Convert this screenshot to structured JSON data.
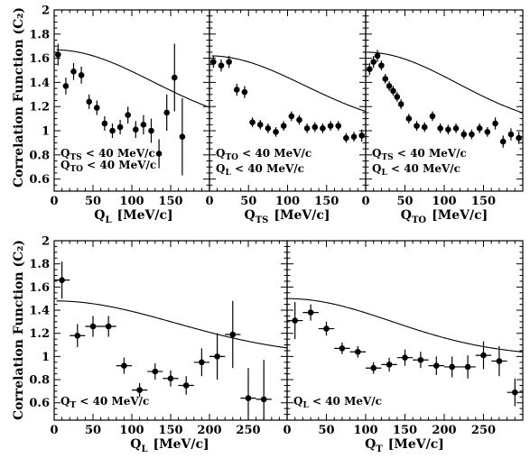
{
  "y_axis_title": "Correlation Function (C₂)",
  "chart_data": [
    {
      "id": "top-ql",
      "type": "scatter",
      "xlabel": "Q_L",
      "xunit": "[MeV/c]",
      "xlim": [
        0,
        200
      ],
      "ylim": [
        0.5,
        2.0
      ],
      "xticks": [
        0,
        50,
        100,
        150
      ],
      "yticks": [
        0.6,
        0.8,
        1,
        1.2,
        1.4,
        1.6,
        1.8,
        2
      ],
      "annotations": [
        {
          "sym": "Q",
          "sub": "TS",
          "text": " < 40 MeV/c"
        },
        {
          "sym": "Q",
          "sub": "TO",
          "text": " < 40 MeV/c"
        }
      ],
      "fit": {
        "lambda": 0.67,
        "R_fm": 1.1,
        "norm": 1.0,
        "x_from": 3,
        "x_to": 200
      },
      "points": [
        {
          "x": 5,
          "y": 1.63,
          "ey": 0.09
        },
        {
          "x": 15,
          "y": 1.37,
          "ey": 0.07
        },
        {
          "x": 25,
          "y": 1.49,
          "ey": 0.07
        },
        {
          "x": 35,
          "y": 1.46,
          "ey": 0.07
        },
        {
          "x": 45,
          "y": 1.24,
          "ey": 0.06
        },
        {
          "x": 55,
          "y": 1.19,
          "ey": 0.06
        },
        {
          "x": 65,
          "y": 1.06,
          "ey": 0.06
        },
        {
          "x": 75,
          "y": 1.0,
          "ey": 0.06
        },
        {
          "x": 85,
          "y": 1.03,
          "ey": 0.06
        },
        {
          "x": 95,
          "y": 1.13,
          "ey": 0.07
        },
        {
          "x": 105,
          "y": 1.01,
          "ey": 0.07
        },
        {
          "x": 115,
          "y": 1.05,
          "ey": 0.08
        },
        {
          "x": 125,
          "y": 1.0,
          "ey": 0.1
        },
        {
          "x": 135,
          "y": 0.81,
          "ey": 0.12
        },
        {
          "x": 145,
          "y": 1.15,
          "ey": 0.15
        },
        {
          "x": 155,
          "y": 1.44,
          "ey": 0.28
        },
        {
          "x": 165,
          "y": 0.95,
          "ey": 0.32
        }
      ]
    },
    {
      "id": "top-qts",
      "type": "scatter",
      "xlabel": "Q_TS",
      "xunit": "[MeV/c]",
      "xlim": [
        0,
        200
      ],
      "ylim": [
        0.5,
        2.0
      ],
      "xticks": [
        0,
        50,
        100,
        150
      ],
      "yticks": [
        0.6,
        0.8,
        1,
        1.2,
        1.4,
        1.6,
        1.8,
        2
      ],
      "annotations": [
        {
          "sym": "Q",
          "sub": "TO",
          "text": " < 40 MeV/c"
        },
        {
          "sym": "Q",
          "sub": "L",
          "text": " < 40 MeV/c"
        }
      ],
      "fit": {
        "lambda": 0.62,
        "R_fm": 1.15,
        "norm": 1.0,
        "x_from": 3,
        "x_to": 200
      },
      "points": [
        {
          "x": 5,
          "y": 1.57,
          "ey": 0.05
        },
        {
          "x": 15,
          "y": 1.54,
          "ey": 0.05
        },
        {
          "x": 25,
          "y": 1.57,
          "ey": 0.05
        },
        {
          "x": 35,
          "y": 1.34,
          "ey": 0.05
        },
        {
          "x": 45,
          "y": 1.32,
          "ey": 0.05
        },
        {
          "x": 55,
          "y": 1.07,
          "ey": 0.04
        },
        {
          "x": 65,
          "y": 1.05,
          "ey": 0.04
        },
        {
          "x": 75,
          "y": 1.02,
          "ey": 0.04
        },
        {
          "x": 85,
          "y": 0.99,
          "ey": 0.04
        },
        {
          "x": 95,
          "y": 1.04,
          "ey": 0.04
        },
        {
          "x": 105,
          "y": 1.12,
          "ey": 0.04
        },
        {
          "x": 115,
          "y": 1.09,
          "ey": 0.04
        },
        {
          "x": 125,
          "y": 1.02,
          "ey": 0.04
        },
        {
          "x": 135,
          "y": 1.03,
          "ey": 0.04
        },
        {
          "x": 145,
          "y": 1.02,
          "ey": 0.04
        },
        {
          "x": 155,
          "y": 1.04,
          "ey": 0.04
        },
        {
          "x": 165,
          "y": 1.04,
          "ey": 0.04
        },
        {
          "x": 175,
          "y": 0.94,
          "ey": 0.04
        },
        {
          "x": 185,
          "y": 0.95,
          "ey": 0.04
        },
        {
          "x": 195,
          "y": 0.96,
          "ey": 0.05
        }
      ]
    },
    {
      "id": "top-qto",
      "type": "scatter",
      "xlabel": "Q_TO",
      "xunit": "[MeV/c]",
      "xlim": [
        0,
        200
      ],
      "ylim": [
        0.5,
        2.0
      ],
      "xticks": [
        0,
        50,
        100,
        150
      ],
      "yticks": [
        0.6,
        0.8,
        1,
        1.2,
        1.4,
        1.6,
        1.8,
        2
      ],
      "annotations": [
        {
          "sym": "Q",
          "sub": "TS",
          "text": " < 40 MeV/c"
        },
        {
          "sym": "Q",
          "sub": "L",
          "text": " < 40 MeV/c"
        }
      ],
      "fit": {
        "lambda": 0.65,
        "R_fm": 1.2,
        "norm": 1.0,
        "x_from": 3,
        "x_to": 200
      },
      "points": [
        {
          "x": 5,
          "y": 1.51,
          "ey": 0.05
        },
        {
          "x": 10,
          "y": 1.57,
          "ey": 0.05
        },
        {
          "x": 15,
          "y": 1.62,
          "ey": 0.05
        },
        {
          "x": 20,
          "y": 1.54,
          "ey": 0.04
        },
        {
          "x": 25,
          "y": 1.43,
          "ey": 0.04
        },
        {
          "x": 30,
          "y": 1.37,
          "ey": 0.04
        },
        {
          "x": 35,
          "y": 1.33,
          "ey": 0.04
        },
        {
          "x": 40,
          "y": 1.28,
          "ey": 0.04
        },
        {
          "x": 45,
          "y": 1.22,
          "ey": 0.04
        },
        {
          "x": 55,
          "y": 1.1,
          "ey": 0.04
        },
        {
          "x": 65,
          "y": 1.04,
          "ey": 0.04
        },
        {
          "x": 75,
          "y": 1.03,
          "ey": 0.04
        },
        {
          "x": 85,
          "y": 1.12,
          "ey": 0.04
        },
        {
          "x": 95,
          "y": 1.02,
          "ey": 0.04
        },
        {
          "x": 105,
          "y": 1.01,
          "ey": 0.04
        },
        {
          "x": 115,
          "y": 1.02,
          "ey": 0.04
        },
        {
          "x": 125,
          "y": 0.97,
          "ey": 0.04
        },
        {
          "x": 135,
          "y": 0.97,
          "ey": 0.04
        },
        {
          "x": 145,
          "y": 1.02,
          "ey": 0.04
        },
        {
          "x": 155,
          "y": 0.99,
          "ey": 0.04
        },
        {
          "x": 165,
          "y": 1.06,
          "ey": 0.05
        },
        {
          "x": 175,
          "y": 0.91,
          "ey": 0.05
        },
        {
          "x": 185,
          "y": 0.97,
          "ey": 0.05
        },
        {
          "x": 195,
          "y": 0.94,
          "ey": 0.05
        },
        {
          "x": 205,
          "y": 1.03,
          "ey": 0.05
        }
      ]
    },
    {
      "id": "bottom-ql",
      "type": "scatter",
      "xlabel": "Q_L",
      "xunit": "[MeV/c]",
      "xlim": [
        0,
        300
      ],
      "ylim": [
        0.45,
        2.0
      ],
      "xticks": [
        0,
        50,
        100,
        150,
        200,
        250
      ],
      "yticks": [
        0.6,
        0.8,
        1,
        1.2,
        1.4,
        1.6,
        1.8,
        2
      ],
      "annotations": [
        {
          "sym": "Q",
          "sub": "T",
          "text": " < 40 MeV/c"
        }
      ],
      "fit": {
        "lambda": 0.48,
        "R_fm": 0.9,
        "norm": 1.0,
        "x_from": 3,
        "x_to": 300
      },
      "points": [
        {
          "x": 10,
          "y": 1.66,
          "ey": 0.16,
          "ex": 10
        },
        {
          "x": 30,
          "y": 1.18,
          "ey": 0.1,
          "ex": 10
        },
        {
          "x": 50,
          "y": 1.26,
          "ey": 0.09,
          "ex": 10
        },
        {
          "x": 70,
          "y": 1.26,
          "ey": 0.09,
          "ex": 10
        },
        {
          "x": 90,
          "y": 0.92,
          "ey": 0.07,
          "ex": 10
        },
        {
          "x": 110,
          "y": 0.71,
          "ey": 0.06,
          "ex": 10
        },
        {
          "x": 130,
          "y": 0.87,
          "ey": 0.07,
          "ex": 10
        },
        {
          "x": 150,
          "y": 0.81,
          "ey": 0.07,
          "ex": 10
        },
        {
          "x": 170,
          "y": 0.75,
          "ey": 0.08,
          "ex": 10
        },
        {
          "x": 190,
          "y": 0.95,
          "ey": 0.12,
          "ex": 10
        },
        {
          "x": 210,
          "y": 1.0,
          "ey": 0.2,
          "ex": 10
        },
        {
          "x": 230,
          "y": 1.19,
          "ey": 0.29,
          "ex": 10
        },
        {
          "x": 250,
          "y": 0.64,
          "ey": 0.26,
          "ex": 10
        },
        {
          "x": 270,
          "y": 0.63,
          "ey": 0.34,
          "ex": 10
        }
      ]
    },
    {
      "id": "bottom-qt",
      "type": "scatter",
      "xlabel": "Q_T",
      "xunit": "[MeV/c]",
      "xlim": [
        0,
        300
      ],
      "ylim": [
        0.45,
        2.0
      ],
      "xticks": [
        0,
        50,
        100,
        150,
        200,
        250
      ],
      "yticks": [
        0.6,
        0.8,
        1,
        1.2,
        1.4,
        1.6,
        1.8,
        2
      ],
      "annotations": [
        {
          "sym": "Q",
          "sub": "L",
          "text": " < 40 MeV/c"
        }
      ],
      "fit": {
        "lambda": 0.5,
        "R_fm": 1.05,
        "norm": 1.0,
        "x_from": 3,
        "x_to": 300
      },
      "points": [
        {
          "x": 10,
          "y": 1.31,
          "ey": 0.16,
          "ex": 10
        },
        {
          "x": 30,
          "y": 1.38,
          "ey": 0.07,
          "ex": 10
        },
        {
          "x": 50,
          "y": 1.24,
          "ey": 0.06,
          "ex": 10
        },
        {
          "x": 70,
          "y": 1.07,
          "ey": 0.05,
          "ex": 10
        },
        {
          "x": 90,
          "y": 1.04,
          "ey": 0.05,
          "ex": 10
        },
        {
          "x": 110,
          "y": 0.9,
          "ey": 0.05,
          "ex": 10
        },
        {
          "x": 130,
          "y": 0.93,
          "ey": 0.06,
          "ex": 10
        },
        {
          "x": 150,
          "y": 0.99,
          "ey": 0.07,
          "ex": 10
        },
        {
          "x": 170,
          "y": 0.97,
          "ey": 0.07,
          "ex": 10
        },
        {
          "x": 190,
          "y": 0.92,
          "ey": 0.08,
          "ex": 10
        },
        {
          "x": 210,
          "y": 0.91,
          "ey": 0.09,
          "ex": 10
        },
        {
          "x": 230,
          "y": 0.91,
          "ey": 0.1,
          "ex": 10
        },
        {
          "x": 250,
          "y": 1.01,
          "ey": 0.12,
          "ex": 10
        },
        {
          "x": 270,
          "y": 0.96,
          "ey": 0.13,
          "ex": 10
        },
        {
          "x": 290,
          "y": 0.69,
          "ey": 0.12,
          "ex": 10
        }
      ]
    }
  ]
}
